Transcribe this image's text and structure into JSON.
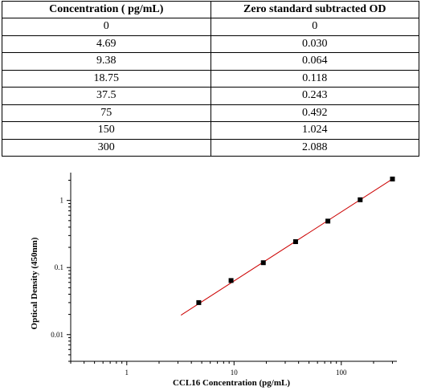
{
  "table": {
    "headers": [
      "Concentration ( pg/mL)",
      "Zero standard subtracted OD"
    ],
    "rows": [
      [
        "0",
        "0"
      ],
      [
        "4.69",
        "0.030"
      ],
      [
        "9.38",
        "0.064"
      ],
      [
        "18.75",
        "0.118"
      ],
      [
        "37.5",
        "0.243"
      ],
      [
        "75",
        "0.492"
      ],
      [
        "150",
        "1.024"
      ],
      [
        "300",
        "2.088"
      ]
    ]
  },
  "chart_data": {
    "type": "scatter",
    "xlabel": "CCL16 Concentration (pg/mL)",
    "ylabel": "Optical Density (450nm)",
    "xscale": "log",
    "yscale": "log",
    "xlim": [
      0.3,
      330
    ],
    "ylim": [
      0.004,
      2.6
    ],
    "xticks": [
      1,
      10,
      100
    ],
    "xtick_labels": [
      "1",
      "10",
      "100"
    ],
    "yticks": [
      0.01,
      0.1,
      1
    ],
    "ytick_labels": [
      "0.01",
      "0.1",
      "1"
    ],
    "grid": false,
    "x": [
      4.69,
      9.38,
      18.75,
      37.5,
      75,
      150,
      300
    ],
    "y": [
      0.03,
      0.064,
      0.118,
      0.243,
      0.492,
      1.024,
      2.088
    ],
    "fit_line": {
      "x": [
        3.2,
        300
      ],
      "y": [
        0.0195,
        2.09
      ],
      "color": "#cc0000"
    },
    "marker_color": "#000000"
  }
}
